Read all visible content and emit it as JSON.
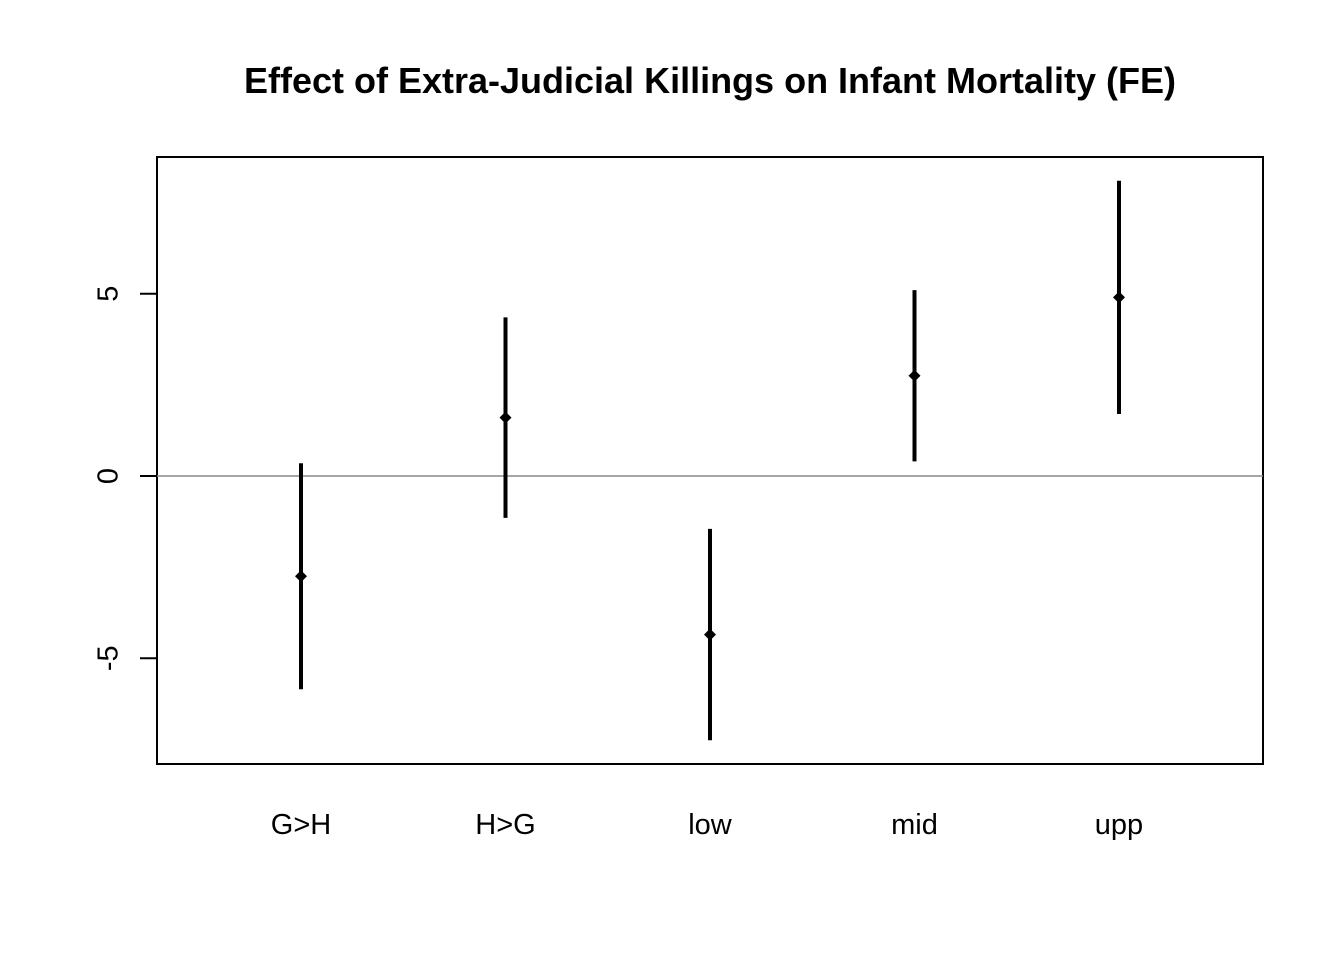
{
  "chart_data": {
    "type": "errorbar",
    "title": "Effect of Extra-Judicial Killings on Infant Mortality (FE)",
    "xlabel": "",
    "ylabel": "",
    "categories": [
      "G>H",
      "H>G",
      "low",
      "mid",
      "upp"
    ],
    "estimates": [
      -2.75,
      1.6,
      -4.35,
      2.75,
      4.9
    ],
    "lower": [
      -5.85,
      -1.15,
      -7.25,
      0.4,
      1.7
    ],
    "upper": [
      0.35,
      4.35,
      -1.45,
      5.1,
      8.1
    ],
    "ylim": [
      -7.9,
      8.75
    ],
    "yticks": [
      -5,
      0,
      5
    ],
    "ytick_labels": [
      "-5",
      "0",
      "5"
    ],
    "reference_line": 0,
    "grid": false,
    "legend": "none",
    "colors": {
      "marks": "#000000",
      "reference_line": "#888888",
      "frame": "#000000",
      "background": "#ffffff"
    }
  }
}
